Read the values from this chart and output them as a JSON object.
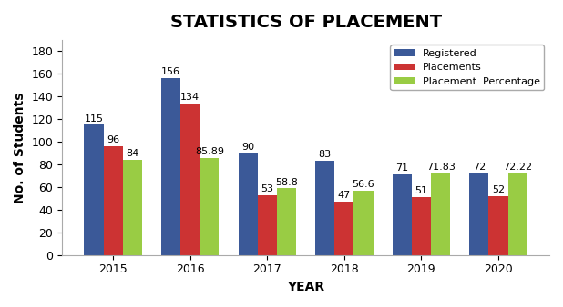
{
  "title": "STATISTICS OF PLACEMENT",
  "xlabel": "YEAR",
  "ylabel": "No. of Students",
  "years": [
    "2015",
    "2016",
    "2017",
    "2018",
    "2019",
    "2020"
  ],
  "registered": [
    115,
    156,
    90,
    83,
    71,
    72
  ],
  "placements": [
    96,
    134,
    53,
    47,
    51,
    52
  ],
  "placement_pct": [
    84,
    85.89,
    58.8,
    56.6,
    71.83,
    72.22
  ],
  "bar_colors": {
    "registered": "#3b5998",
    "placements": "#cc3333",
    "placement_pct": "#99cc44"
  },
  "legend_labels": [
    "Registered",
    "Placements",
    "Placement  Percentage"
  ],
  "ylim": [
    0,
    190
  ],
  "yticks": [
    0,
    20,
    40,
    60,
    80,
    100,
    120,
    140,
    160,
    180
  ],
  "bar_width": 0.25,
  "title_fontsize": 14,
  "axis_label_fontsize": 10,
  "tick_fontsize": 9,
  "label_fontsize": 8,
  "background_color": "#ffffff",
  "border_color": "#cccccc"
}
